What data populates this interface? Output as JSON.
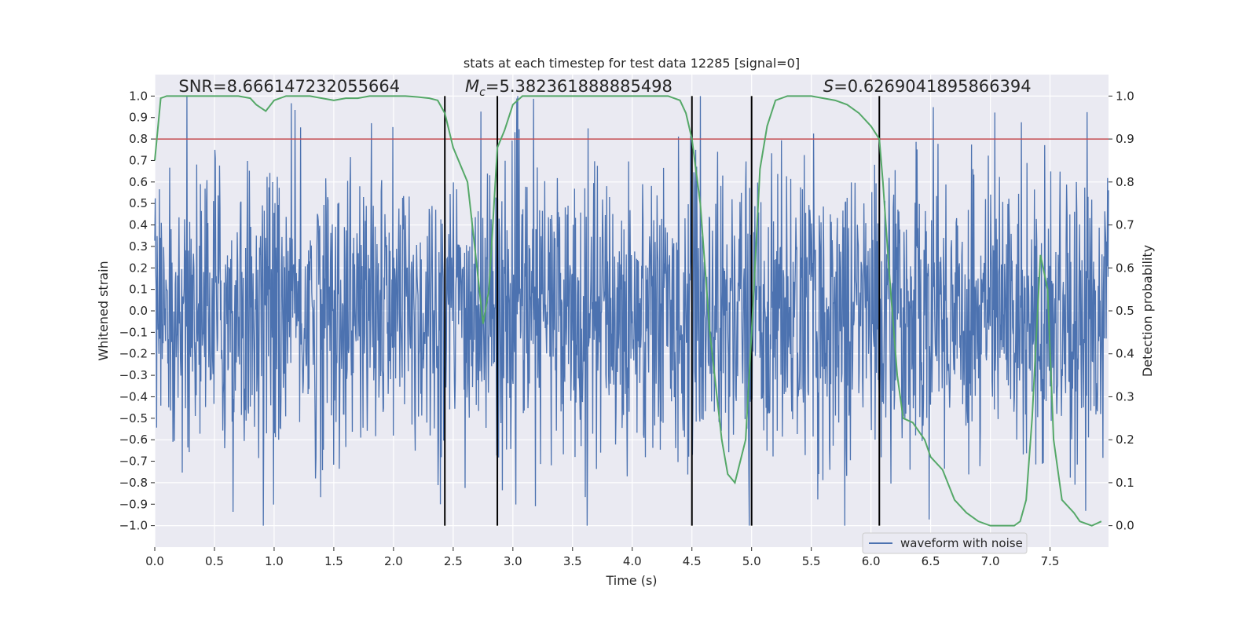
{
  "chart_data": {
    "type": "line",
    "title": "stats at each timestep for test data 12285 [signal=0]",
    "xlabel": "Time (s)",
    "ylabel_left": "Whitened strain",
    "ylabel_right": "Detection probability",
    "xlim": [
      0.0,
      7.99
    ],
    "ylim_left": [
      -1.1,
      1.1
    ],
    "ylim_right": [
      -0.05,
      1.05
    ],
    "x_ticks": [
      0.0,
      0.5,
      1.0,
      1.5,
      2.0,
      2.5,
      3.0,
      3.5,
      4.0,
      4.5,
      5.0,
      5.5,
      6.0,
      6.5,
      7.0,
      7.5
    ],
    "x_tick_labels": [
      "0.0",
      "0.5",
      "1.0",
      "1.5",
      "2.0",
      "2.5",
      "3.0",
      "3.5",
      "4.0",
      "4.5",
      "5.0",
      "5.5",
      "6.0",
      "6.5",
      "7.0",
      "7.5"
    ],
    "y_ticks_left": [
      -1.0,
      -0.9,
      -0.8,
      -0.7,
      -0.6,
      -0.5,
      -0.4,
      -0.3,
      -0.2,
      -0.1,
      0.0,
      0.1,
      0.2,
      0.3,
      0.4,
      0.5,
      0.6,
      0.7,
      0.8,
      0.9,
      1.0
    ],
    "y_tick_labels_left": [
      "−1.0",
      "−0.9",
      "−0.8",
      "−0.7",
      "−0.6",
      "−0.5",
      "−0.4",
      "−0.3",
      "−0.2",
      "−0.1",
      "0.0",
      "0.1",
      "0.2",
      "0.3",
      "0.4",
      "0.5",
      "0.6",
      "0.7",
      "0.8",
      "0.9",
      "1.0"
    ],
    "y_ticks_right": [
      0.0,
      0.1,
      0.2,
      0.3,
      0.4,
      0.5,
      0.6,
      0.7,
      0.8,
      0.9,
      1.0
    ],
    "y_tick_labels_right": [
      "0.0",
      "0.1",
      "0.2",
      "0.3",
      "0.4",
      "0.5",
      "0.6",
      "0.7",
      "0.8",
      "0.9",
      "1.0"
    ],
    "grid": true,
    "legend_placement": "lower-right",
    "annotations": [
      {
        "text": "SNR=8.666147232055664",
        "x": 0.2,
        "y": 1.02
      },
      {
        "text": "M_c=5.382361888885498",
        "x": 2.6,
        "y": 1.02
      },
      {
        "text": "S=0.6269041895866394",
        "x": 5.6,
        "y": 1.02
      }
    ],
    "threshold": {
      "axis": "right",
      "value": 0.9,
      "color": "#c44e52"
    },
    "vertical_lines": [
      2.43,
      2.87,
      4.5,
      5.0,
      6.07
    ],
    "series": [
      {
        "name": "waveform with noise",
        "axis": "left",
        "color": "#4c72b0",
        "kind": "noise",
        "sample_count": 2048,
        "typical_envelope": 0.4,
        "max_abs": 1.0
      },
      {
        "axis": "right",
        "color": "#55a868",
        "x": [
          0.0,
          0.05,
          0.1,
          0.2,
          0.3,
          0.4,
          0.5,
          0.6,
          0.7,
          0.8,
          0.85,
          0.93,
          1.0,
          1.1,
          1.2,
          1.3,
          1.4,
          1.5,
          1.6,
          1.7,
          1.8,
          1.9,
          2.0,
          2.1,
          2.2,
          2.3,
          2.37,
          2.43,
          2.5,
          2.62,
          2.7,
          2.75,
          2.8,
          2.87,
          2.93,
          3.0,
          3.08,
          3.2,
          3.5,
          3.8,
          4.0,
          4.2,
          4.3,
          4.4,
          4.45,
          4.5,
          4.57,
          4.65,
          4.75,
          4.8,
          4.86,
          4.95,
          5.0,
          5.07,
          5.13,
          5.2,
          5.3,
          5.5,
          5.6,
          5.7,
          5.8,
          5.9,
          6.0,
          6.07,
          6.1,
          6.15,
          6.22,
          6.27,
          6.35,
          6.45,
          6.5,
          6.6,
          6.7,
          6.8,
          6.9,
          7.0,
          7.1,
          7.2,
          7.25,
          7.3,
          7.35,
          7.42,
          7.48,
          7.53,
          7.6,
          7.7,
          7.75,
          7.8,
          7.85,
          7.93
        ],
        "y": [
          0.85,
          0.995,
          1.0,
          1.0,
          1.0,
          1.0,
          1.0,
          1.0,
          1.0,
          0.995,
          0.98,
          0.965,
          0.99,
          1.0,
          1.0,
          1.0,
          0.995,
          0.99,
          0.995,
          0.995,
          1.0,
          1.0,
          1.0,
          1.0,
          0.998,
          0.995,
          0.99,
          0.96,
          0.88,
          0.8,
          0.6,
          0.47,
          0.55,
          0.88,
          0.92,
          0.98,
          1.0,
          1.0,
          1.0,
          1.0,
          1.0,
          1.0,
          1.0,
          0.99,
          0.96,
          0.9,
          0.75,
          0.45,
          0.2,
          0.12,
          0.1,
          0.2,
          0.45,
          0.83,
          0.93,
          0.99,
          1.0,
          1.0,
          0.995,
          0.99,
          0.98,
          0.96,
          0.93,
          0.9,
          0.8,
          0.6,
          0.35,
          0.25,
          0.24,
          0.2,
          0.16,
          0.13,
          0.06,
          0.03,
          0.01,
          0.0,
          0.0,
          0.0,
          0.01,
          0.06,
          0.25,
          0.63,
          0.55,
          0.2,
          0.06,
          0.03,
          0.01,
          0.005,
          0.0,
          0.01
        ]
      }
    ]
  }
}
